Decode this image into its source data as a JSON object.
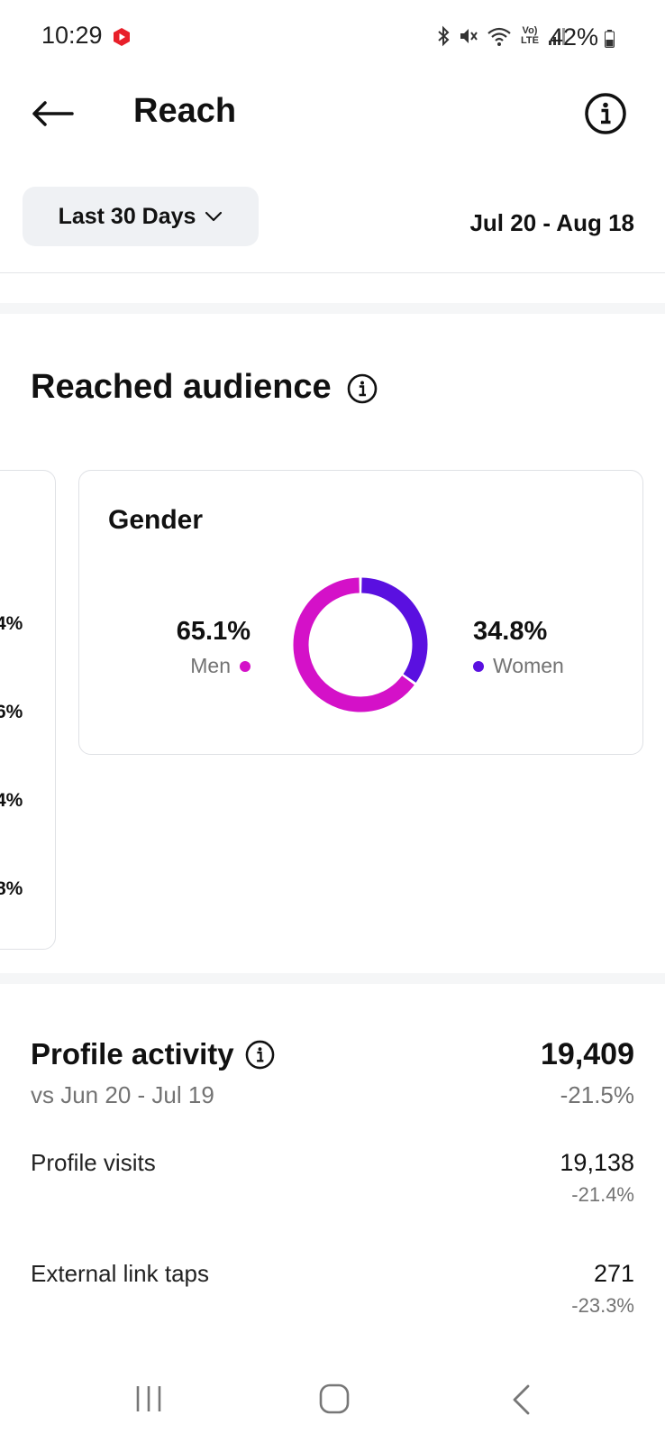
{
  "status_bar": {
    "time": "10:29",
    "battery": "42%",
    "network": "Vo) LTE",
    "icons": [
      "youtube-icon",
      "bluetooth-icon",
      "mute-icon",
      "wifi-icon",
      "volte-icon",
      "signal-icon",
      "battery-icon"
    ]
  },
  "header": {
    "title": "Reach",
    "back_icon": "arrow-left-icon",
    "info_icon": "info-circle-icon"
  },
  "filter": {
    "range_label": "Last 30 Days",
    "date_range": "Jul 20 - Aug 18"
  },
  "reached_audience": {
    "title": "Reached audience",
    "peek_values": [
      "4%",
      "6%",
      "4%",
      "8%"
    ],
    "gender": {
      "title": "Gender",
      "men": {
        "pct": "65.1%",
        "label": "Men",
        "value": 65.1,
        "color": "#d411c8"
      },
      "women": {
        "pct": "34.8%",
        "label": "Women",
        "value": 34.8,
        "color": "#5a10e0"
      }
    }
  },
  "profile_activity": {
    "title": "Profile activity",
    "comparison": "vs Jun 20 - Jul 19",
    "total": "19,409",
    "total_change": "-21.5%",
    "rows": [
      {
        "label": "Profile visits",
        "value": "19,138",
        "change": "-21.4%"
      },
      {
        "label": "External link taps",
        "value": "271",
        "change": "-23.3%"
      }
    ]
  },
  "nav_bar": {
    "icons": [
      "recents-icon",
      "home-icon",
      "back-icon"
    ]
  }
}
